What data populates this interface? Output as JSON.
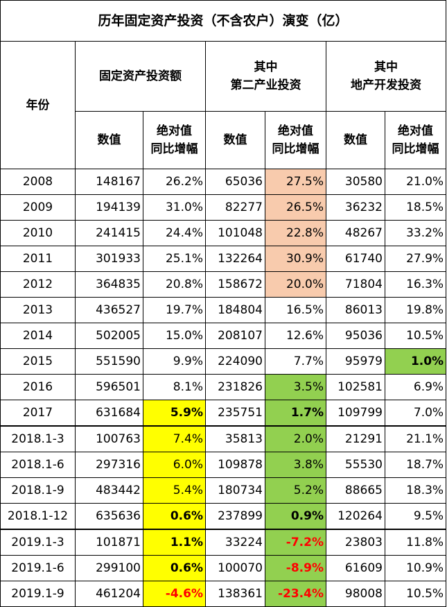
{
  "title": "历年固定资产投资（不含农户）演变（亿）",
  "headers": {
    "year": "年份",
    "group1": "固定资产投资额",
    "group2_line1": "其中",
    "group2_line2": "第二产业投资",
    "group3_line1": "其中",
    "group3_line2": "地产开发投资",
    "value": "数值",
    "growth_line1": "绝对值",
    "growth_line2": "同比增幅"
  },
  "colors": {
    "peach": "#f8cbad",
    "yellow": "#ffff00",
    "green": "#92d050",
    "negative": "#ff0000"
  },
  "rows": [
    {
      "year": "2008",
      "fai": "148167",
      "fai_g": "26.2%",
      "sec": "65036",
      "sec_g": "27.5%",
      "re": "30580",
      "re_g": "21.0%"
    },
    {
      "year": "2009",
      "fai": "194139",
      "fai_g": "31.0%",
      "sec": "82277",
      "sec_g": "26.5%",
      "re": "36232",
      "re_g": "18.5%"
    },
    {
      "year": "2010",
      "fai": "241415",
      "fai_g": "24.4%",
      "sec": "101048",
      "sec_g": "22.8%",
      "re": "48267",
      "re_g": "33.2%"
    },
    {
      "year": "2011",
      "fai": "301933",
      "fai_g": "25.1%",
      "sec": "132264",
      "sec_g": "30.9%",
      "re": "61740",
      "re_g": "27.9%"
    },
    {
      "year": "2012",
      "fai": "364835",
      "fai_g": "20.8%",
      "sec": "158672",
      "sec_g": "20.0%",
      "re": "71804",
      "re_g": "16.3%"
    },
    {
      "year": "2013",
      "fai": "436527",
      "fai_g": "19.7%",
      "sec": "184804",
      "sec_g": "16.5%",
      "re": "86013",
      "re_g": "19.8%"
    },
    {
      "year": "2014",
      "fai": "502005",
      "fai_g": "15.0%",
      "sec": "208107",
      "sec_g": "12.6%",
      "re": "95036",
      "re_g": "10.5%"
    },
    {
      "year": "2015",
      "fai": "551590",
      "fai_g": "9.9%",
      "sec": "224090",
      "sec_g": "7.7%",
      "re": "95979",
      "re_g": "1.0%"
    },
    {
      "year": "2016",
      "fai": "596501",
      "fai_g": "8.1%",
      "sec": "231826",
      "sec_g": "3.5%",
      "re": "102581",
      "re_g": "6.9%"
    },
    {
      "year": "2017",
      "fai": "631684",
      "fai_g": "5.9%",
      "sec": "235751",
      "sec_g": "1.7%",
      "re": "109799",
      "re_g": "7.0%"
    },
    {
      "year": "2018.1-3",
      "fai": "100763",
      "fai_g": "7.4%",
      "sec": "35813",
      "sec_g": "2.0%",
      "re": "21291",
      "re_g": "21.1%"
    },
    {
      "year": "2018.1-6",
      "fai": "297316",
      "fai_g": "6.0%",
      "sec": "109878",
      "sec_g": "3.8%",
      "re": "55530",
      "re_g": "18.7%"
    },
    {
      "year": "2018.1-9",
      "fai": "483442",
      "fai_g": "5.4%",
      "sec": "180734",
      "sec_g": "5.2%",
      "re": "88665",
      "re_g": "18.3%"
    },
    {
      "year": "2018.1-12",
      "fai": "635636",
      "fai_g": "0.6%",
      "sec": "237899",
      "sec_g": "0.9%",
      "re": "120264",
      "re_g": "9.5%"
    },
    {
      "year": "2019.1-3",
      "fai": "101871",
      "fai_g": "1.1%",
      "sec": "33224",
      "sec_g": "-7.2%",
      "re": "23803",
      "re_g": "11.8%"
    },
    {
      "year": "2019.1-6",
      "fai": "299100",
      "fai_g": "0.6%",
      "sec": "100070",
      "sec_g": "-8.9%",
      "re": "61609",
      "re_g": "10.9%"
    },
    {
      "year": "2019.1-9",
      "fai": "461204",
      "fai_g": "-4.6%",
      "sec": "138361",
      "sec_g": "-23.4%",
      "re": "98008",
      "re_g": "10.5%"
    }
  ]
}
